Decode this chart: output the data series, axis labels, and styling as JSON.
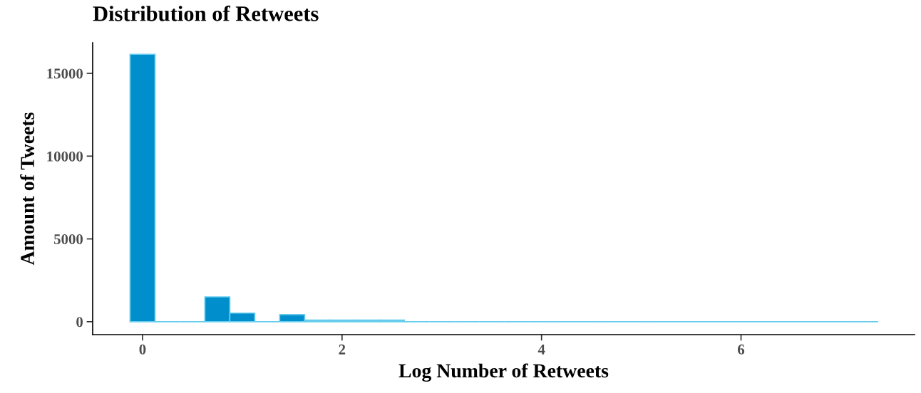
{
  "chart_data": {
    "type": "histogram",
    "title": "Distribution of Retweets",
    "xlabel": "Log Number of Retweets",
    "ylabel": "Amount of Tweets",
    "bins": [
      -0.125,
      0.125,
      0.375,
      0.625,
      0.875,
      1.125,
      1.375,
      1.625,
      1.875,
      2.125,
      2.375,
      2.625,
      2.875,
      3.125,
      3.375,
      3.625,
      3.875,
      4.125,
      4.375,
      4.625,
      4.875,
      5.125,
      5.375,
      5.625,
      5.875,
      6.125,
      6.375,
      6.625,
      6.875,
      7.125,
      7.375
    ],
    "values": [
      16150,
      0,
      0,
      1500,
      520,
      0,
      430,
      100,
      100,
      100,
      100,
      0,
      0,
      0,
      0,
      0,
      0,
      0,
      0,
      0,
      0,
      0,
      0,
      0,
      0,
      0,
      0,
      0,
      0,
      0
    ],
    "colors": [
      "#008fcc",
      "#66ccee",
      "#66ccee",
      "#008fcc",
      "#008fcc",
      "#66ccee",
      "#008fcc",
      "#66ccee",
      "#66ccee",
      "#66ccee",
      "#66ccee",
      "#66ccee",
      "#66ccee",
      "#66ccee",
      "#66ccee",
      "#66ccee",
      "#66ccee",
      "#66ccee",
      "#66ccee",
      "#66ccee",
      "#66ccee",
      "#66ccee",
      "#66ccee",
      "#66ccee",
      "#66ccee",
      "#66ccee",
      "#66ccee",
      "#66ccee",
      "#66ccee",
      "#66ccee"
    ],
    "xlim": [
      -0.5,
      7.74
    ],
    "xticks": [
      0,
      2,
      4,
      6
    ],
    "ylim": [
      -780,
      16850
    ],
    "yticks": [
      0,
      5000,
      10000,
      15000
    ],
    "grid": false,
    "legend": false
  }
}
